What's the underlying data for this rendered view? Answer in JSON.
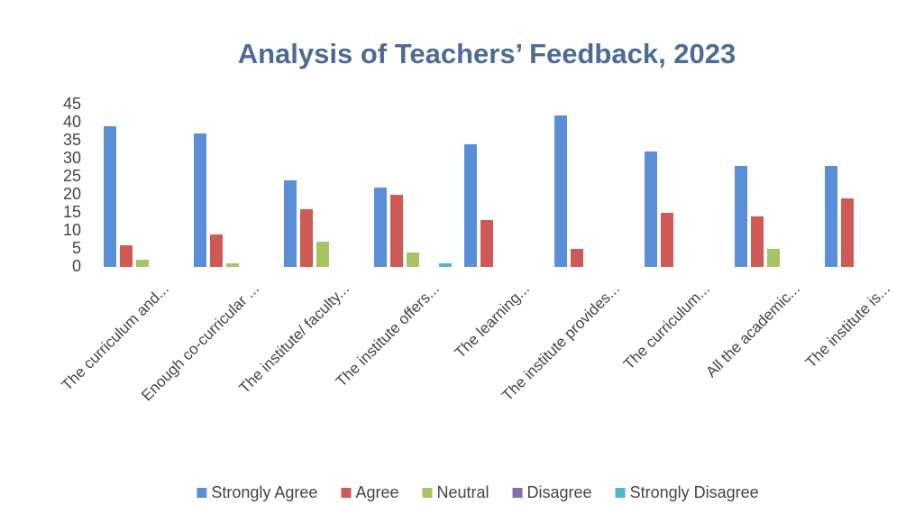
{
  "chart_data": {
    "type": "bar",
    "title": "Analysis of Teachers’ Feedback, 2023",
    "categories": [
      "The curriculum and...",
      "Enough co-curricular ...",
      "The institute/ faculty...",
      "The institute offers...",
      "The learning...",
      "The institute provides...",
      "The curriculum...",
      "All the academic...",
      "The institute is..."
    ],
    "series": [
      {
        "name": "Strongly Agree",
        "color": "#5a8fd8",
        "values": [
          39,
          37,
          24,
          22,
          34,
          42,
          32,
          28,
          28
        ]
      },
      {
        "name": "Agree",
        "color": "#cf5a55",
        "values": [
          6,
          9,
          16,
          20,
          13,
          5,
          15,
          14,
          19
        ]
      },
      {
        "name": "Neutral",
        "color": "#a6c45f",
        "values": [
          2,
          1,
          7,
          4,
          0,
          0,
          0,
          5,
          0
        ]
      },
      {
        "name": "Disagree",
        "color": "#8a6ab0",
        "values": [
          0,
          0,
          0,
          0,
          0,
          0,
          0,
          0,
          0
        ]
      },
      {
        "name": "Strongly Disagree",
        "color": "#52b5cf",
        "values": [
          0,
          0,
          0,
          1,
          0,
          0,
          0,
          0,
          0
        ]
      }
    ],
    "ylim": [
      0,
      45
    ],
    "yticks": [
      0,
      5,
      10,
      15,
      20,
      25,
      30,
      35,
      40,
      45
    ],
    "grid": false,
    "legend": "bottom"
  }
}
